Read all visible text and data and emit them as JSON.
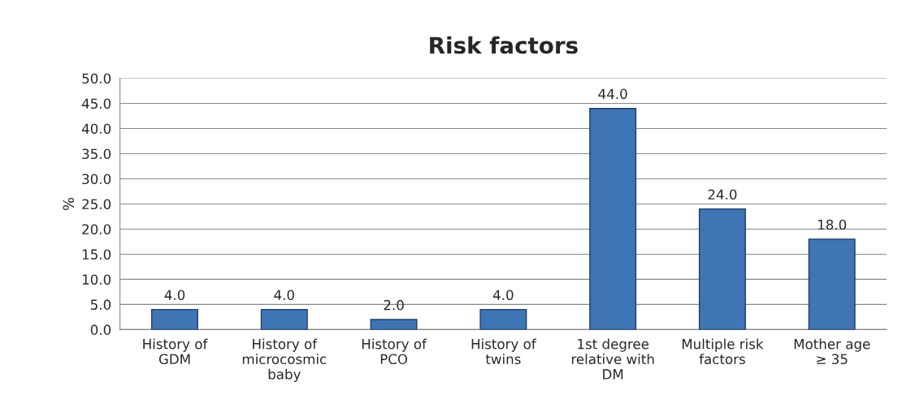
{
  "chart_data": {
    "type": "bar",
    "title": "Risk factors",
    "ylabel": "%",
    "categories": [
      "History of\nGDM",
      "History of\nmicrocosmic\nbaby",
      "History of\nPCO",
      "History of\ntwins",
      "1st degree\nrelative with\nDM",
      "Multiple risk\nfactors",
      "Mother age\n≥ 35"
    ],
    "values": [
      4,
      4,
      2,
      4,
      44,
      24,
      18
    ],
    "value_labels": [
      "4.0",
      "4.0",
      "2.0",
      "4.0",
      "44.0",
      "24.0",
      "18.0"
    ],
    "color": "#3f74b5",
    "ylim": [
      0,
      50
    ],
    "yticks": [
      {
        "value": 0,
        "label": "0.0"
      },
      {
        "value": 5,
        "label": "5.0"
      },
      {
        "value": 10,
        "label": "10.0"
      },
      {
        "value": 15,
        "label": "15.0"
      },
      {
        "value": 20,
        "label": "20.0"
      },
      {
        "value": 25,
        "label": "25.0"
      },
      {
        "value": 30,
        "label": "30.0"
      },
      {
        "value": 35,
        "label": "35.0"
      },
      {
        "value": 40,
        "label": "40.0"
      },
      {
        "value": 45,
        "label": "45.0"
      },
      {
        "value": 50,
        "label": "50.0"
      }
    ],
    "grid": "y",
    "legend": false
  }
}
